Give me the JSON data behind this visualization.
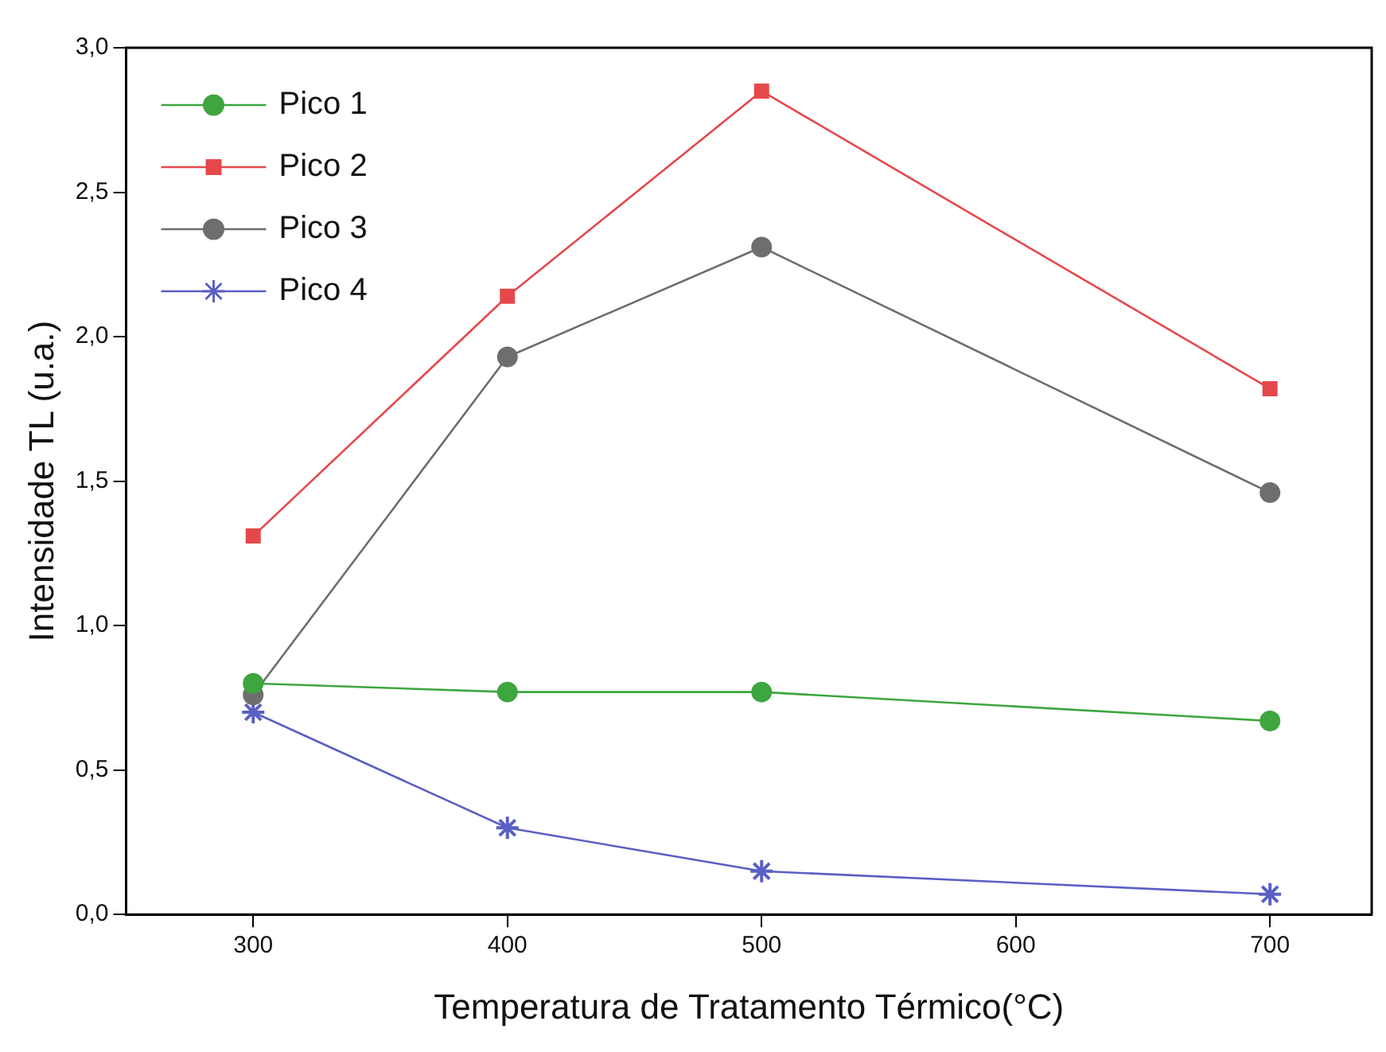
{
  "chart_data": {
    "type": "line",
    "xlabel": "Temperatura de Tratamento Térmico(°C)",
    "ylabel": "Intensidade TL (u.a.)",
    "x": [
      300,
      400,
      500,
      700
    ],
    "series": [
      {
        "name": "Pico 1",
        "color": "#3ea63e",
        "marker": "circle",
        "values": [
          0.8,
          0.77,
          0.77,
          0.67
        ]
      },
      {
        "name": "Pico 2",
        "color": "#e5484b",
        "marker": "square",
        "values": [
          1.31,
          2.14,
          2.85,
          1.82
        ]
      },
      {
        "name": "Pico 3",
        "color": "#6e6e6e",
        "marker": "circle",
        "values": [
          0.76,
          1.93,
          2.31,
          1.46
        ]
      },
      {
        "name": "Pico 4",
        "color": "#5a5fc4",
        "marker": "cross",
        "values": [
          0.7,
          0.3,
          0.15,
          0.07
        ]
      }
    ],
    "xlim": [
      250,
      740
    ],
    "xticks": [
      300,
      400,
      500,
      600,
      700
    ],
    "ylim": [
      0,
      3
    ],
    "yticks": [
      {
        "value": 0,
        "label": "0,0"
      },
      {
        "value": 0.5,
        "label": "0,5"
      },
      {
        "value": 1,
        "label": "1,0"
      },
      {
        "value": 1.5,
        "label": "1,5"
      },
      {
        "value": 2,
        "label": "2,0"
      },
      {
        "value": 2.5,
        "label": "2,5"
      },
      {
        "value": 3,
        "label": "3,0"
      }
    ],
    "grid": false,
    "legend": "top left",
    "line_style": "solid"
  }
}
